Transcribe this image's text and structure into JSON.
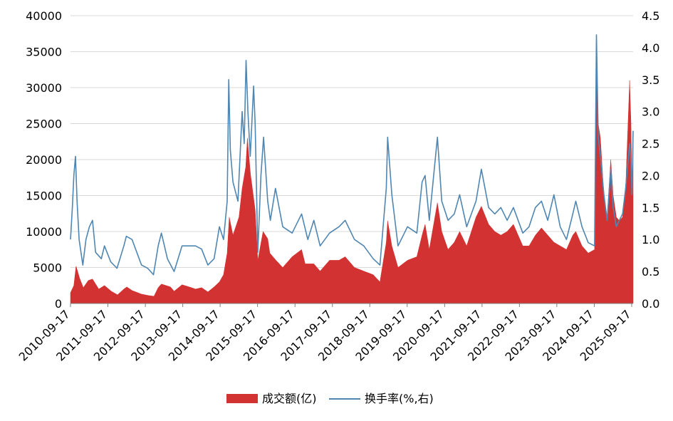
{
  "colors": {
    "volume": "#d23232",
    "turnover": "#4f86b2",
    "grid": "#d9d9d9",
    "axis": "#7f7f7f"
  },
  "chart_data": {
    "type": "area",
    "title": "",
    "grid": true,
    "legend": "bottom-center",
    "x_tick_labels": [
      "2010-09-17",
      "2011-09-17",
      "2012-09-17",
      "2013-09-17",
      "2014-09-17",
      "2015-09-17",
      "2016-09-17",
      "2017-09-17",
      "2018-09-17",
      "2019-09-17",
      "2020-09-17",
      "2021-09-17",
      "2022-09-17",
      "2023-09-17",
      "2024-09-17",
      "2025-09-17"
    ],
    "x_range": [
      "2010-09-17",
      "2025-10-01"
    ],
    "y_left": {
      "range": [
        0,
        40000
      ],
      "ticks": [
        "0",
        "5000",
        "10000",
        "15000",
        "20000",
        "25000",
        "30000",
        "35000",
        "40000"
      ]
    },
    "y_right": {
      "range": [
        0,
        4.5
      ],
      "ticks": [
        "0.0",
        "0.5",
        "1.0",
        "1.5",
        "2.0",
        "2.5",
        "3.0",
        "3.5",
        "4.0",
        "4.5"
      ]
    },
    "series": [
      {
        "name": "成交额(亿)",
        "type": "area",
        "axis": "left",
        "points": [
          [
            "2010-09-17",
            1500
          ],
          [
            "2010-10-20",
            2500
          ],
          [
            "2010-11-10",
            5200
          ],
          [
            "2010-12-15",
            3500
          ],
          [
            "2011-01-20",
            2200
          ],
          [
            "2011-03-10",
            3200
          ],
          [
            "2011-04-20",
            3400
          ],
          [
            "2011-06-20",
            2000
          ],
          [
            "2011-08-15",
            2500
          ],
          [
            "2011-10-20",
            1700
          ],
          [
            "2011-12-20",
            1200
          ],
          [
            "2012-02-20",
            2000
          ],
          [
            "2012-03-20",
            2300
          ],
          [
            "2012-05-10",
            1800
          ],
          [
            "2012-08-10",
            1300
          ],
          [
            "2012-10-20",
            1100
          ],
          [
            "2012-12-10",
            1000
          ],
          [
            "2013-01-20",
            2200
          ],
          [
            "2013-02-20",
            2700
          ],
          [
            "2013-05-20",
            2300
          ],
          [
            "2013-06-25",
            1700
          ],
          [
            "2013-09-10",
            2600
          ],
          [
            "2013-11-20",
            2300
          ],
          [
            "2014-01-20",
            2000
          ],
          [
            "2014-03-20",
            2200
          ],
          [
            "2014-05-20",
            1600
          ],
          [
            "2014-07-20",
            2300
          ],
          [
            "2014-09-10",
            3000
          ],
          [
            "2014-10-20",
            4000
          ],
          [
            "2014-11-25",
            7000
          ],
          [
            "2014-12-15",
            12000
          ],
          [
            "2015-01-20",
            9500
          ],
          [
            "2015-03-20",
            12000
          ],
          [
            "2015-04-20",
            16000
          ],
          [
            "2015-05-25",
            19000
          ],
          [
            "2015-06-10",
            23000
          ],
          [
            "2015-07-10",
            18000
          ],
          [
            "2015-08-25",
            13000
          ],
          [
            "2015-09-20",
            6000
          ],
          [
            "2015-11-10",
            10000
          ],
          [
            "2015-12-25",
            9000
          ],
          [
            "2016-01-15",
            7000
          ],
          [
            "2016-03-15",
            6000
          ],
          [
            "2016-05-20",
            5000
          ],
          [
            "2016-08-20",
            6500
          ],
          [
            "2016-11-20",
            7500
          ],
          [
            "2016-12-25",
            5500
          ],
          [
            "2017-03-20",
            5500
          ],
          [
            "2017-05-20",
            4500
          ],
          [
            "2017-08-20",
            6000
          ],
          [
            "2017-11-20",
            6000
          ],
          [
            "2018-01-20",
            6500
          ],
          [
            "2018-04-20",
            5000
          ],
          [
            "2018-07-20",
            4500
          ],
          [
            "2018-10-20",
            4000
          ],
          [
            "2018-12-25",
            3000
          ],
          [
            "2019-02-25",
            8500
          ],
          [
            "2019-03-10",
            11500
          ],
          [
            "2019-04-20",
            8000
          ],
          [
            "2019-06-20",
            5000
          ],
          [
            "2019-09-20",
            6000
          ],
          [
            "2019-12-20",
            6500
          ],
          [
            "2020-02-10",
            9500
          ],
          [
            "2020-03-10",
            11000
          ],
          [
            "2020-04-20",
            7500
          ],
          [
            "2020-07-08",
            14000
          ],
          [
            "2020-08-20",
            10000
          ],
          [
            "2020-10-20",
            7500
          ],
          [
            "2020-12-20",
            8500
          ],
          [
            "2021-02-10",
            10000
          ],
          [
            "2021-04-20",
            8000
          ],
          [
            "2021-07-20",
            12000
          ],
          [
            "2021-09-10",
            13500
          ],
          [
            "2021-11-20",
            11000
          ],
          [
            "2022-01-20",
            10000
          ],
          [
            "2022-03-20",
            9500
          ],
          [
            "2022-05-20",
            10000
          ],
          [
            "2022-07-20",
            11000
          ],
          [
            "2022-10-20",
            8000
          ],
          [
            "2022-12-20",
            8000
          ],
          [
            "2023-02-20",
            9500
          ],
          [
            "2023-04-20",
            10500
          ],
          [
            "2023-06-20",
            9500
          ],
          [
            "2023-08-20",
            8500
          ],
          [
            "2023-10-20",
            8000
          ],
          [
            "2023-12-20",
            7500
          ],
          [
            "2024-02-20",
            9500
          ],
          [
            "2024-03-20",
            10000
          ],
          [
            "2024-05-20",
            8000
          ],
          [
            "2024-07-20",
            7000
          ],
          [
            "2024-09-20",
            7500
          ],
          [
            "2024-10-08",
            34800
          ],
          [
            "2024-10-25",
            25000
          ],
          [
            "2024-11-15",
            23000
          ],
          [
            "2024-12-20",
            15000
          ],
          [
            "2025-01-20",
            12000
          ],
          [
            "2025-02-25",
            20000
          ],
          [
            "2025-03-20",
            15000
          ],
          [
            "2025-04-20",
            12000
          ],
          [
            "2025-05-20",
            11500
          ],
          [
            "2025-06-20",
            12000
          ],
          [
            "2025-07-20",
            16000
          ],
          [
            "2025-08-20",
            28000
          ],
          [
            "2025-08-28",
            31000
          ],
          [
            "2025-09-10",
            25000
          ],
          [
            "2025-09-20",
            15000
          ],
          [
            "2025-10-01",
            22000
          ]
        ]
      },
      {
        "name": "换手率(%,右)",
        "type": "line",
        "axis": "right",
        "points": [
          [
            "2010-09-17",
            1.0
          ],
          [
            "2010-10-05",
            1.5
          ],
          [
            "2010-10-20",
            2.0
          ],
          [
            "2010-11-05",
            2.3
          ],
          [
            "2010-11-20",
            1.6
          ],
          [
            "2010-12-10",
            1.0
          ],
          [
            "2011-01-15",
            0.6
          ],
          [
            "2011-02-15",
            1.0
          ],
          [
            "2011-03-20",
            1.2
          ],
          [
            "2011-04-20",
            1.3
          ],
          [
            "2011-05-20",
            0.8
          ],
          [
            "2011-07-15",
            0.7
          ],
          [
            "2011-08-15",
            0.9
          ],
          [
            "2011-10-15",
            0.65
          ],
          [
            "2011-12-15",
            0.55
          ],
          [
            "2012-02-20",
            0.9
          ],
          [
            "2012-03-15",
            1.05
          ],
          [
            "2012-05-10",
            1.0
          ],
          [
            "2012-08-10",
            0.6
          ],
          [
            "2012-10-10",
            0.55
          ],
          [
            "2012-12-05",
            0.45
          ],
          [
            "2013-01-20",
            0.9
          ],
          [
            "2013-02-20",
            1.1
          ],
          [
            "2013-04-20",
            0.7
          ],
          [
            "2013-06-25",
            0.5
          ],
          [
            "2013-09-10",
            0.9
          ],
          [
            "2013-11-20",
            0.9
          ],
          [
            "2014-01-20",
            0.9
          ],
          [
            "2014-03-20",
            0.85
          ],
          [
            "2014-05-20",
            0.6
          ],
          [
            "2014-07-20",
            0.7
          ],
          [
            "2014-09-10",
            1.2
          ],
          [
            "2014-10-20",
            1.0
          ],
          [
            "2014-11-25",
            1.6
          ],
          [
            "2014-12-10",
            3.5
          ],
          [
            "2014-12-25",
            2.4
          ],
          [
            "2015-01-20",
            1.9
          ],
          [
            "2015-03-10",
            1.6
          ],
          [
            "2015-04-20",
            3.0
          ],
          [
            "2015-05-10",
            2.5
          ],
          [
            "2015-05-28",
            3.8
          ],
          [
            "2015-06-15",
            3.0
          ],
          [
            "2015-07-08",
            2.3
          ],
          [
            "2015-08-10",
            3.4
          ],
          [
            "2015-08-25",
            2.8
          ],
          [
            "2015-09-20",
            0.8
          ],
          [
            "2015-10-20",
            2.0
          ],
          [
            "2015-11-15",
            2.6
          ],
          [
            "2015-12-25",
            1.6
          ],
          [
            "2016-01-20",
            1.3
          ],
          [
            "2016-03-10",
            1.8
          ],
          [
            "2016-05-20",
            1.2
          ],
          [
            "2016-08-20",
            1.1
          ],
          [
            "2016-11-20",
            1.4
          ],
          [
            "2017-01-20",
            1.0
          ],
          [
            "2017-03-20",
            1.3
          ],
          [
            "2017-05-20",
            0.9
          ],
          [
            "2017-08-20",
            1.1
          ],
          [
            "2017-11-20",
            1.2
          ],
          [
            "2018-01-20",
            1.3
          ],
          [
            "2018-04-20",
            1.0
          ],
          [
            "2018-07-20",
            0.9
          ],
          [
            "2018-10-20",
            0.7
          ],
          [
            "2018-12-25",
            0.6
          ],
          [
            "2019-02-25",
            1.8
          ],
          [
            "2019-03-10",
            2.6
          ],
          [
            "2019-04-20",
            1.7
          ],
          [
            "2019-06-20",
            0.9
          ],
          [
            "2019-09-20",
            1.2
          ],
          [
            "2019-12-20",
            1.1
          ],
          [
            "2020-02-10",
            1.9
          ],
          [
            "2020-03-10",
            2.0
          ],
          [
            "2020-04-20",
            1.3
          ],
          [
            "2020-07-08",
            2.6
          ],
          [
            "2020-08-20",
            1.6
          ],
          [
            "2020-10-20",
            1.3
          ],
          [
            "2020-12-20",
            1.4
          ],
          [
            "2021-02-10",
            1.7
          ],
          [
            "2021-04-20",
            1.2
          ],
          [
            "2021-07-20",
            1.6
          ],
          [
            "2021-09-10",
            2.1
          ],
          [
            "2021-11-20",
            1.5
          ],
          [
            "2022-01-20",
            1.4
          ],
          [
            "2022-03-20",
            1.5
          ],
          [
            "2022-05-20",
            1.3
          ],
          [
            "2022-07-20",
            1.5
          ],
          [
            "2022-10-20",
            1.1
          ],
          [
            "2022-12-20",
            1.2
          ],
          [
            "2023-02-20",
            1.5
          ],
          [
            "2023-04-20",
            1.6
          ],
          [
            "2023-06-20",
            1.3
          ],
          [
            "2023-08-20",
            1.7
          ],
          [
            "2023-10-20",
            1.2
          ],
          [
            "2023-12-20",
            1.0
          ],
          [
            "2024-02-20",
            1.4
          ],
          [
            "2024-03-20",
            1.6
          ],
          [
            "2024-05-20",
            1.2
          ],
          [
            "2024-07-20",
            0.95
          ],
          [
            "2024-09-20",
            0.9
          ],
          [
            "2024-10-08",
            4.2
          ],
          [
            "2024-10-25",
            2.6
          ],
          [
            "2024-11-15",
            2.3
          ],
          [
            "2024-12-20",
            1.7
          ],
          [
            "2025-01-20",
            1.3
          ],
          [
            "2025-02-25",
            2.1
          ],
          [
            "2025-03-20",
            1.5
          ],
          [
            "2025-04-20",
            1.2
          ],
          [
            "2025-05-20",
            1.3
          ],
          [
            "2025-06-20",
            1.4
          ],
          [
            "2025-07-20",
            1.8
          ],
          [
            "2025-08-28",
            2.5
          ],
          [
            "2025-09-10",
            2.2
          ],
          [
            "2025-09-20",
            1.7
          ],
          [
            "2025-10-01",
            2.7
          ]
        ]
      }
    ]
  }
}
